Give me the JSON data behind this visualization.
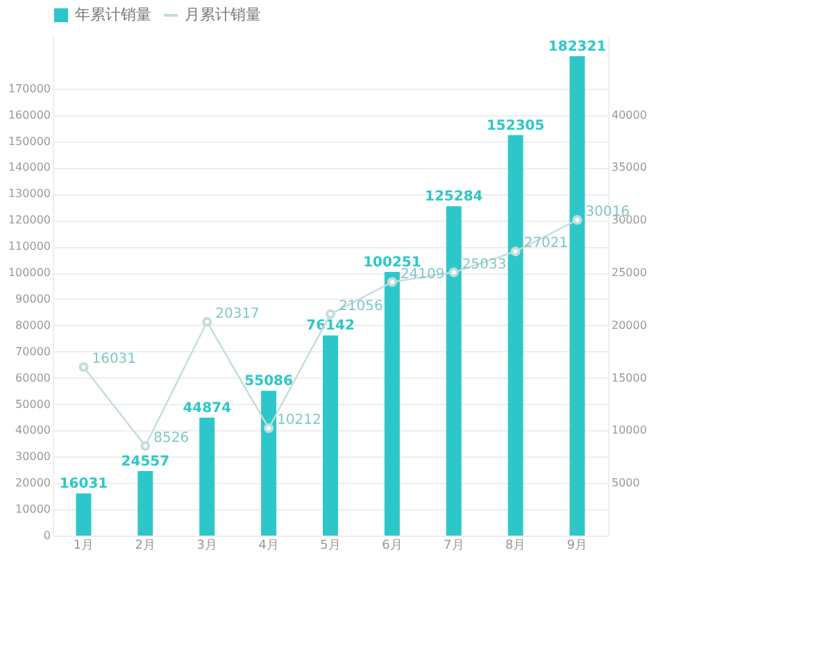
{
  "chart_data": {
    "type": "bar",
    "categories": [
      "1月",
      "2月",
      "3月",
      "4月",
      "5月",
      "6月",
      "7月",
      "8月",
      "9月"
    ],
    "series": [
      {
        "name": "年累计销量",
        "color": "#2ec7c9",
        "values": [
          16031,
          24557,
          44874,
          55086,
          76142,
          100251,
          125284,
          152305,
          182321
        ]
      },
      {
        "name": "月累计销量",
        "type": "line",
        "axis": "y2",
        "color": "#c4dcdc",
        "marker": "circle",
        "values": [
          16031,
          8526,
          20317,
          10212,
          21056,
          24109,
          25033,
          27021,
          30016
        ]
      }
    ],
    "ylim": [
      0,
      190000
    ],
    "yticks": [
      0,
      10000,
      20000,
      30000,
      40000,
      50000,
      60000,
      70000,
      80000,
      90000,
      100000,
      110000,
      120000,
      130000,
      140000,
      150000,
      160000,
      170000
    ],
    "y2lim": [
      0,
      47500
    ],
    "y2ticks": [
      5000,
      10000,
      15000,
      20000,
      25000,
      30000,
      35000,
      40000
    ],
    "data_labels": true,
    "grid": "y",
    "legend": "top left"
  }
}
